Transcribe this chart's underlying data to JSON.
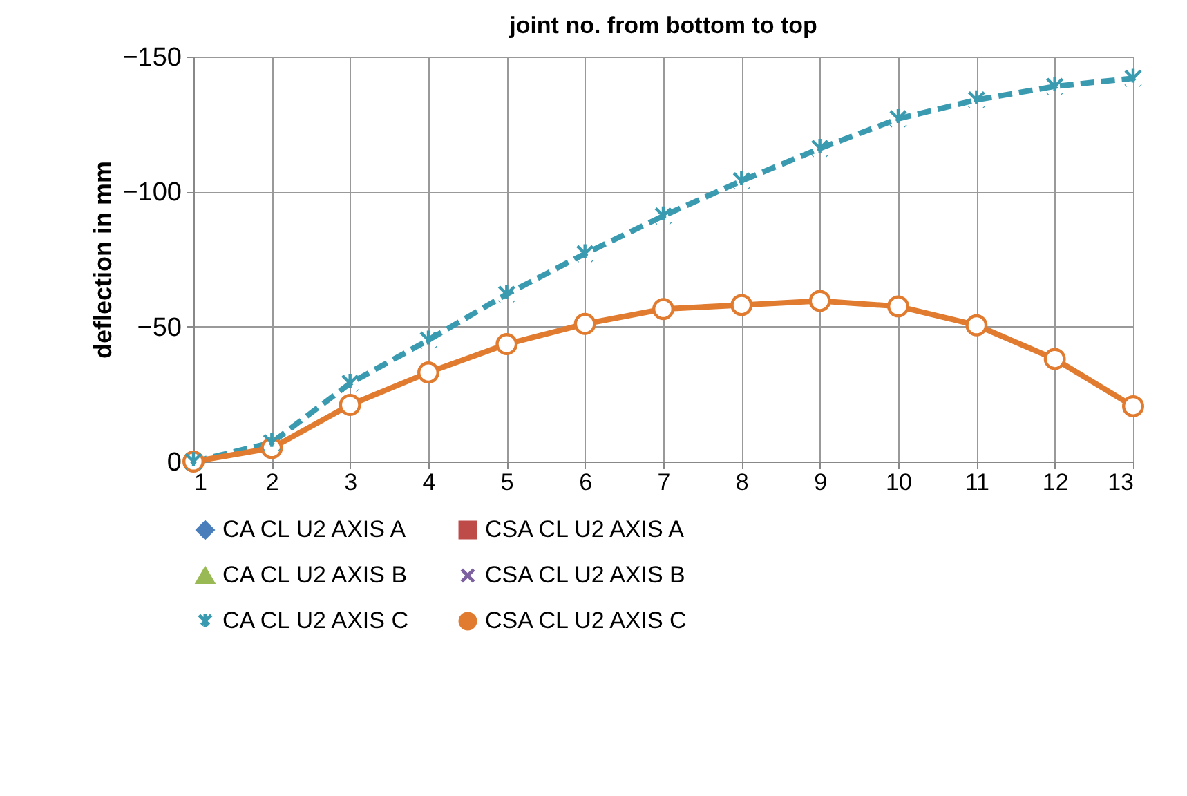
{
  "chart_data": {
    "type": "line",
    "title": "joint no. from bottom to top",
    "ylabel": "deflection in mm",
    "x": [
      1,
      2,
      3,
      4,
      5,
      6,
      7,
      8,
      9,
      10,
      11,
      12,
      13
    ],
    "xlim": [
      1,
      13
    ],
    "xticks": [
      1,
      2,
      3,
      4,
      5,
      6,
      7,
      8,
      9,
      10,
      11,
      12,
      13
    ],
    "ylim": [
      0,
      -150
    ],
    "yticks": [
      0,
      -50,
      -100,
      -150
    ],
    "grid": true,
    "legend": "bottom",
    "series": [
      {
        "name": "CA CL U2 AXIS A",
        "color": "#4a7ebb",
        "marker": "diamond",
        "line_style": "solid",
        "values": [
          null,
          null,
          null,
          null,
          null,
          null,
          null,
          null,
          null,
          null,
          null,
          null,
          null
        ]
      },
      {
        "name": "CSA CL U2 AXIS A",
        "color": "#be4b48",
        "marker": "square",
        "line_style": "solid",
        "values": [
          null,
          null,
          null,
          null,
          null,
          null,
          null,
          null,
          null,
          null,
          null,
          null,
          null
        ]
      },
      {
        "name": "CA CL U2 AXIS B",
        "color": "#98b954",
        "marker": "triangle",
        "line_style": "solid",
        "values": [
          null,
          null,
          null,
          null,
          null,
          null,
          null,
          null,
          null,
          null,
          null,
          null,
          null
        ]
      },
      {
        "name": "CSA CL U2 AXIS B",
        "color": "#7d60a0",
        "marker": "cross",
        "line_style": "solid",
        "values": [
          null,
          null,
          null,
          null,
          null,
          null,
          null,
          null,
          null,
          null,
          null,
          null,
          null
        ]
      },
      {
        "name": "CA CL U2 AXIS C",
        "color": "#3a9bb0",
        "marker": "cross",
        "line_style": "dashed",
        "values": [
          0,
          -7,
          -29,
          -45,
          -62,
          -77,
          -91,
          -104,
          -116,
          -127,
          -134,
          -139,
          -142
        ]
      },
      {
        "name": "CSA CL U2 AXIS C",
        "color": "#e07b2f",
        "marker": "circle",
        "line_style": "solid",
        "values": [
          0,
          -5,
          -21,
          -33,
          -43.5,
          -51,
          -56.5,
          -58,
          -59.5,
          -57.5,
          -50.5,
          -38,
          -20.5
        ]
      }
    ]
  }
}
